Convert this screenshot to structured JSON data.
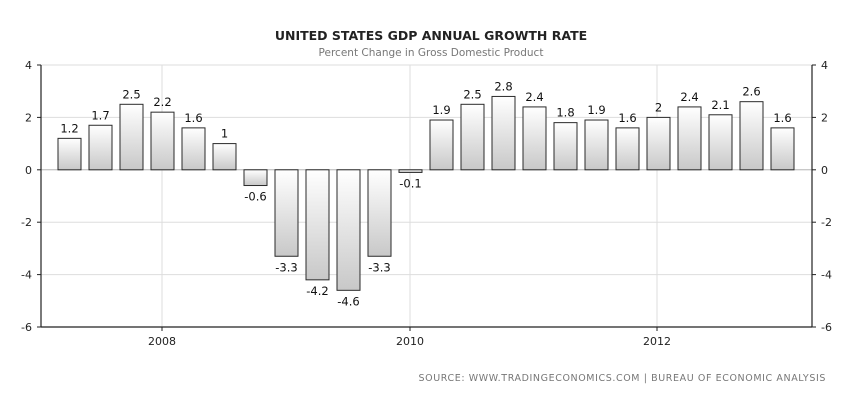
{
  "chart_data": {
    "type": "bar",
    "title": "UNITED STATES GDP ANNUAL GROWTH RATE",
    "subtitle": "Percent Change in Gross Domestic Product",
    "source": "SOURCE: WWW.TRADINGECONOMICS.COM | BUREAU OF ECONOMIC ANALYSIS",
    "ylim": [
      -6,
      4
    ],
    "yticks": [
      4,
      2,
      0,
      -2,
      -4,
      -6
    ],
    "xticks": [
      "2008",
      "2010",
      "2012"
    ],
    "grid": true,
    "values": [
      1.2,
      1.7,
      2.5,
      2.2,
      1.6,
      1,
      -0.6,
      -3.3,
      -4.2,
      -4.6,
      -3.3,
      -0.1,
      1.9,
      2.5,
      2.8,
      2.4,
      1.8,
      1.9,
      1.6,
      2,
      2.4,
      2.1,
      2.6,
      1.6
    ],
    "labels": [
      "1.2",
      "1.7",
      "2.5",
      "2.2",
      "1.6",
      "1",
      "-0.6",
      "-3.3",
      "-4.2",
      "-4.6",
      "-3.3",
      "-0.1",
      "1.9",
      "2.5",
      "2.8",
      "2.4",
      "1.8",
      "1.9",
      "1.6",
      "2",
      "2.4",
      "2.1",
      "2.6",
      "1.6"
    ],
    "colors": {
      "bar_fill_top": "#ffffff",
      "bar_fill_bottom": "#c8c8c8",
      "bar_stroke": "#2a2a2a",
      "grid": "#dddddd",
      "axis": "#222222"
    }
  }
}
